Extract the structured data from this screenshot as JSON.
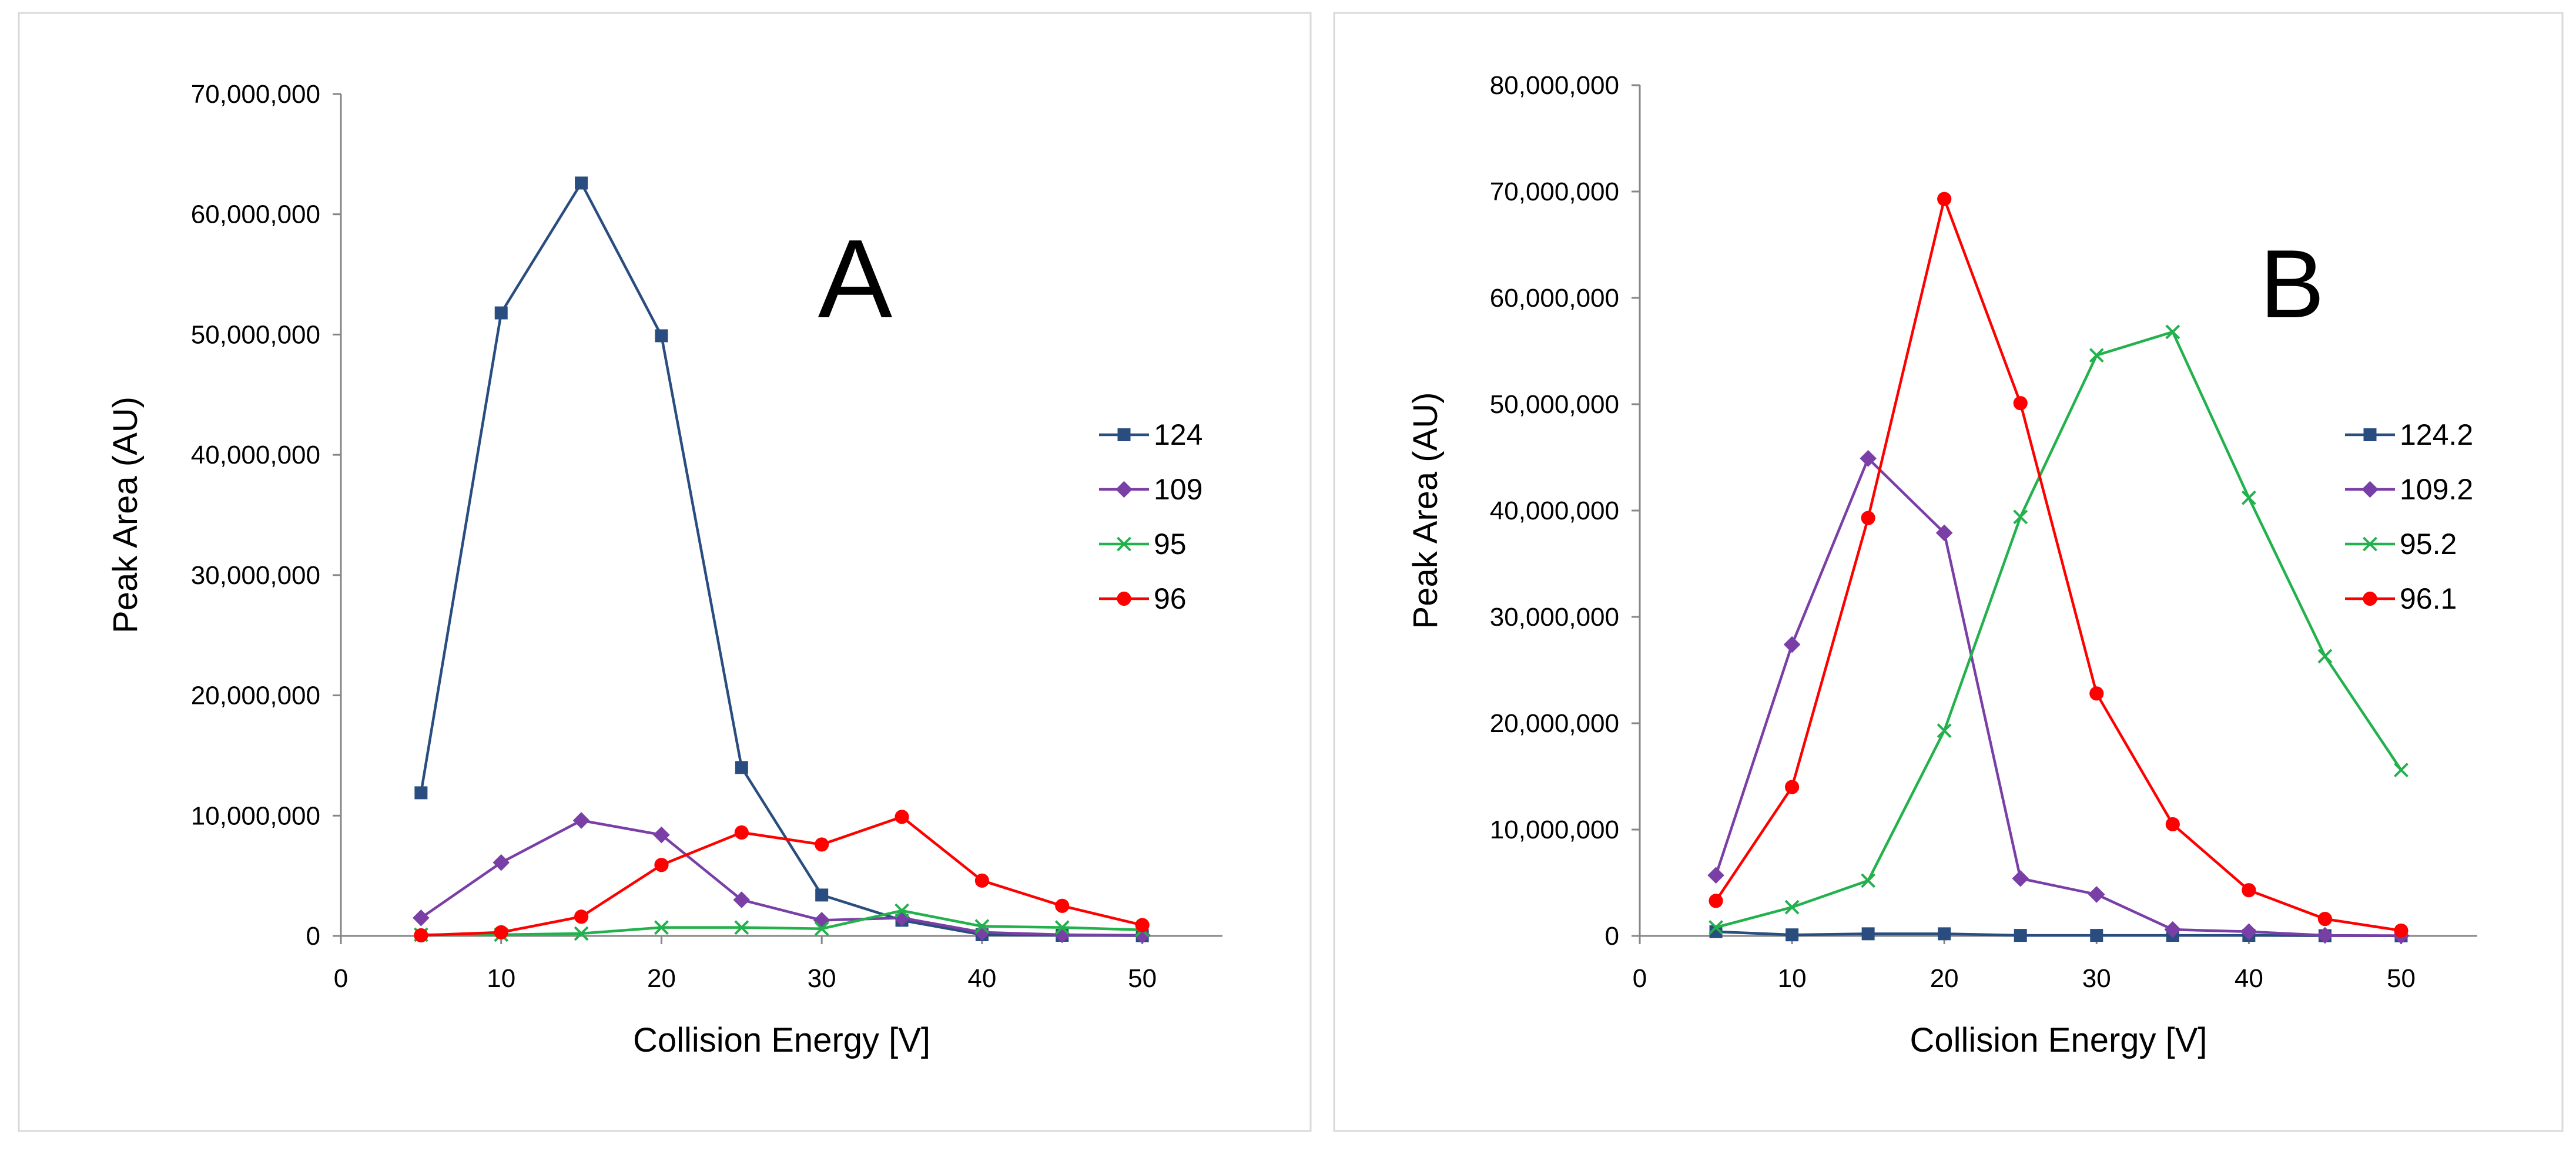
{
  "chart_data": [
    {
      "type": "line",
      "panel_label": "A",
      "title": "",
      "xlabel": "Collision Energy [V]",
      "ylabel": "Peak Area (AU)",
      "xlim": [
        0,
        55
      ],
      "ylim": [
        0,
        70000000
      ],
      "x_ticks": [
        0,
        10,
        20,
        30,
        40,
        50
      ],
      "y_ticks": [
        0,
        10000000,
        20000000,
        30000000,
        40000000,
        50000000,
        60000000,
        70000000
      ],
      "grid": false,
      "legend_position": "right",
      "x": [
        5,
        10,
        15,
        20,
        25,
        30,
        35,
        40,
        45,
        50
      ],
      "series": [
        {
          "name": "124",
          "color": "#2a4d7f",
          "marker": "square",
          "values": [
            11900000,
            51800000,
            62600000,
            49900000,
            14000000,
            3400000,
            1300000,
            100000,
            50000,
            20000
          ]
        },
        {
          "name": "109",
          "color": "#7a3fa6",
          "marker": "diamond",
          "values": [
            1500000,
            6100000,
            9600000,
            8400000,
            3000000,
            1300000,
            1500000,
            300000,
            100000,
            50000
          ]
        },
        {
          "name": "95",
          "color": "#22b14c",
          "marker": "x",
          "values": [
            100000,
            100000,
            200000,
            700000,
            700000,
            600000,
            2100000,
            800000,
            700000,
            500000
          ]
        },
        {
          "name": "96",
          "color": "#ff0000",
          "marker": "circle",
          "values": [
            50000,
            300000,
            1600000,
            5900000,
            8600000,
            7600000,
            9900000,
            4600000,
            2500000,
            900000
          ]
        }
      ]
    },
    {
      "type": "line",
      "panel_label": "B",
      "title": "",
      "xlabel": "Collision Energy [V]",
      "ylabel": "Peak Area (AU)",
      "xlim": [
        0,
        55
      ],
      "ylim": [
        0,
        80000000
      ],
      "x_ticks": [
        0,
        10,
        20,
        30,
        40,
        50
      ],
      "y_ticks": [
        0,
        10000000,
        20000000,
        30000000,
        40000000,
        50000000,
        60000000,
        70000000,
        80000000
      ],
      "grid": false,
      "legend_position": "right",
      "x": [
        5,
        10,
        15,
        20,
        25,
        30,
        35,
        40,
        45,
        50
      ],
      "series": [
        {
          "name": "124.2",
          "color": "#2a4d7f",
          "marker": "square",
          "values": [
            400000,
            100000,
            200000,
            200000,
            50000,
            50000,
            50000,
            50000,
            20000,
            10000
          ]
        },
        {
          "name": "109.2",
          "color": "#7a3fa6",
          "marker": "diamond",
          "values": [
            5700000,
            27400000,
            44900000,
            37900000,
            5400000,
            3900000,
            600000,
            400000,
            50000,
            20000
          ]
        },
        {
          "name": "95.2",
          "color": "#22b14c",
          "marker": "x",
          "values": [
            800000,
            2700000,
            5200000,
            19300000,
            39400000,
            54600000,
            56800000,
            41200000,
            26300000,
            15600000
          ]
        },
        {
          "name": "96.1",
          "color": "#ff0000",
          "marker": "circle",
          "values": [
            3300000,
            14000000,
            39300000,
            69300000,
            50100000,
            22800000,
            10500000,
            4300000,
            1600000,
            500000
          ]
        }
      ]
    }
  ]
}
